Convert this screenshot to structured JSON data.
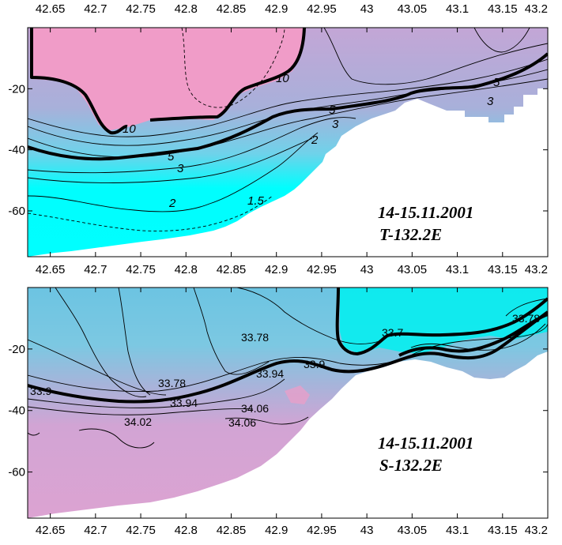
{
  "chart_data": [
    {
      "type": "heatmap",
      "id": "temperature",
      "annotation": [
        "14-15.11.2001",
        "T-132.2E"
      ],
      "x_ticks": [
        "42.65",
        "42.7",
        "42.75",
        "42.8",
        "42.85",
        "42.9",
        "42.95",
        "43",
        "43.05",
        "43.1",
        "43.15",
        "43.2"
      ],
      "y_ticks": [
        "-20",
        "-40",
        "-60"
      ],
      "xlim": [
        42.625,
        43.2
      ],
      "ylim": [
        -75,
        0
      ],
      "contour_labels": [
        "10",
        "10",
        "5",
        "5",
        "5",
        "3",
        "3",
        "3",
        "2",
        "2",
        "1.5"
      ],
      "colors": {
        "warm": "#f09cc8",
        "mid": "#a6b1da",
        "cold": "#00ffff"
      }
    },
    {
      "type": "heatmap",
      "id": "salinity",
      "annotation": [
        "14-15.11.2001",
        "S-132.2E"
      ],
      "x_ticks": [
        "42.65",
        "42.7",
        "42.75",
        "42.8",
        "42.85",
        "42.9",
        "42.95",
        "43",
        "43.05",
        "43.1",
        "43.15",
        "43.2"
      ],
      "y_ticks": [
        "-20",
        "-40",
        "-60"
      ],
      "xlim": [
        42.625,
        43.2
      ],
      "ylim": [
        -75,
        0
      ],
      "contour_labels": [
        "33.78",
        "33.78",
        "33.78",
        "33.7",
        "33.9",
        "33.9",
        "33.94",
        "33.94",
        "34.02",
        "34.06",
        "34.06"
      ],
      "colors": {
        "fresh": "#00f2f2",
        "mid": "#7ec8e0",
        "salty": "#dba2d2"
      }
    }
  ]
}
